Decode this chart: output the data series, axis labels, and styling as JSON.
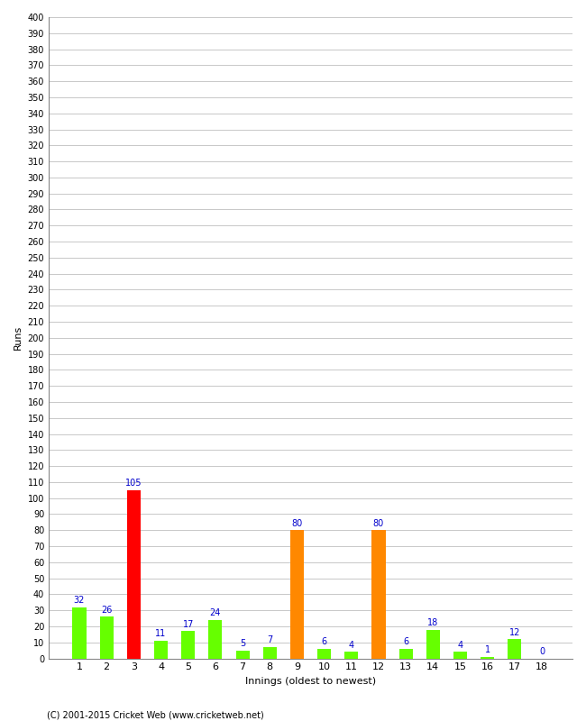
{
  "title": "",
  "xlabel": "Innings (oldest to newest)",
  "ylabel": "Runs",
  "categories": [
    "1",
    "2",
    "3",
    "4",
    "5",
    "6",
    "7",
    "8",
    "9",
    "10",
    "11",
    "12",
    "13",
    "14",
    "15",
    "16",
    "17",
    "18"
  ],
  "values": [
    32,
    26,
    105,
    11,
    17,
    24,
    5,
    7,
    80,
    6,
    4,
    80,
    6,
    18,
    4,
    1,
    12,
    0
  ],
  "bar_colors": [
    "#66ff00",
    "#66ff00",
    "#ff0000",
    "#66ff00",
    "#66ff00",
    "#66ff00",
    "#66ff00",
    "#66ff00",
    "#ff8800",
    "#66ff00",
    "#66ff00",
    "#ff8800",
    "#66ff00",
    "#66ff00",
    "#66ff00",
    "#66ff00",
    "#66ff00",
    "#66ff00"
  ],
  "label_color": "#0000cc",
  "label_fontsize": 7,
  "ylim": [
    0,
    400
  ],
  "background_color": "#ffffff",
  "grid_color": "#c8c8c8",
  "footer": "(C) 2001-2015 Cricket Web (www.cricketweb.net)",
  "bar_width": 0.5
}
